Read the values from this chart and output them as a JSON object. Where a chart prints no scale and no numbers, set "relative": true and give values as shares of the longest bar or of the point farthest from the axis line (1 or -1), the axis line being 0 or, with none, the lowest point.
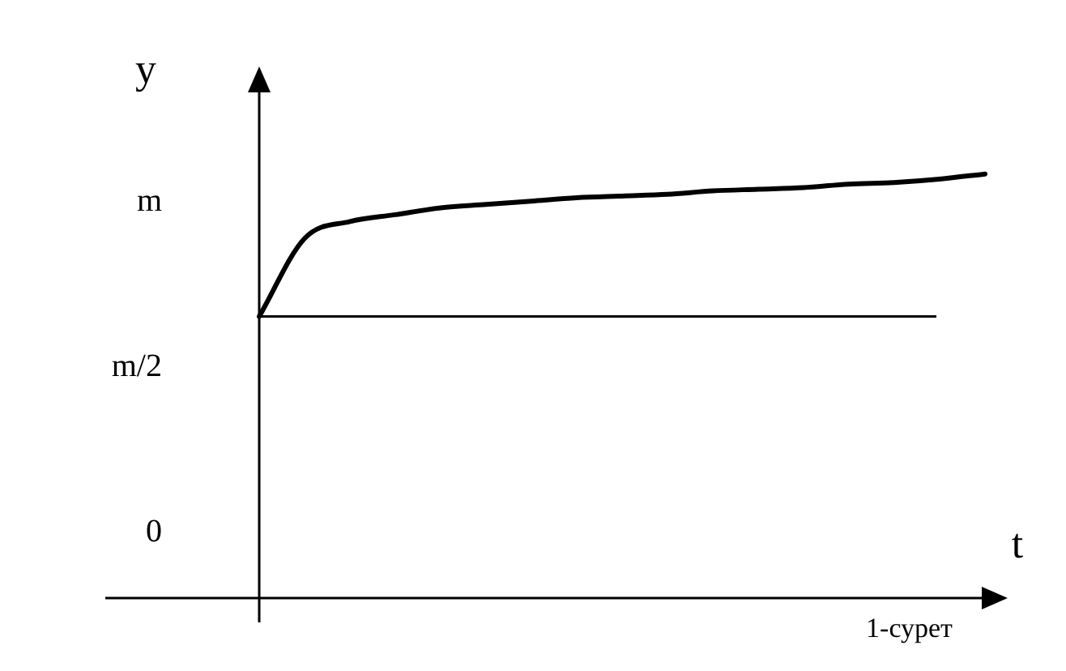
{
  "chart_data": {
    "type": "line",
    "xlabel": "t",
    "ylabel": "y",
    "relative": true,
    "categories": [
      null,
      null,
      null,
      null,
      null,
      null,
      null,
      null,
      null,
      null,
      null,
      null,
      null,
      null,
      null,
      null,
      null
    ],
    "series": [
      {
        "color": "#000000",
        "values": [
          0.664,
          0.848,
          0.888,
          0.904,
          0.92,
          0.928,
          0.936,
          0.944,
          0.948,
          0.952,
          0.96,
          0.964,
          0.968,
          0.976,
          0.98,
          0.988,
          1
        ]
      }
    ],
    "ref_lines": [
      {
        "axis": "y",
        "value": 0.664,
        "color": "#000000"
      }
    ],
    "annotations": [
      "m",
      "m/2",
      "0",
      "1-сурет"
    ],
    "legend": false,
    "marker": "none",
    "line_style": "solid"
  }
}
